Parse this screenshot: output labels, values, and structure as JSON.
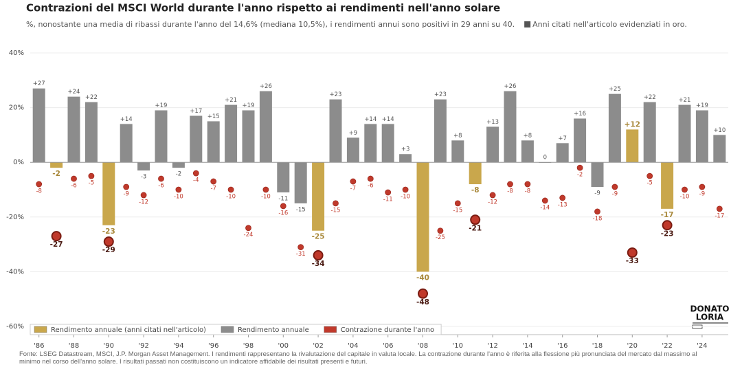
{
  "chart_data": {
    "type": "bar",
    "title": "Contrazioni del MSCI World durante l'anno rispetto ai rendimenti nell'anno solare",
    "subtitle": "%, nonostante una media di ribassi durante l'anno del 14,6% (mediana 10,5%), i rendimenti annui sono positivi in 29 anni su 40.",
    "highlight_note": "Anni citati nell'articolo evidenziati in oro.",
    "source": "Fonte: LSEG Datastream, MSCI, J.P. Morgan Asset Management. I rendimenti rappresentano la rivalutazione del capitale in valuta locale. La contrazione durante l'anno è riferita alla flessione più pronunciata del mercato dal massimo al minimo nel corso dell'anno solare. I risultati passati non costituiscono un indicatore affidabile dei risultati presenti e futuri.",
    "categories": [
      "'86",
      null,
      "'88",
      null,
      "'90",
      null,
      "'92",
      null,
      "'94",
      null,
      "'96",
      null,
      "'98",
      null,
      "'00",
      null,
      "'02",
      null,
      "'04",
      null,
      "'06",
      null,
      "'08",
      null,
      "'10",
      null,
      "'12",
      null,
      "'14",
      null,
      "'16",
      null,
      "'18",
      null,
      "'20",
      null,
      "'22",
      null,
      "'24",
      null
    ],
    "ylim": [
      -63,
      43
    ],
    "yticks": [
      {
        "value": -60,
        "label": "-60%"
      },
      {
        "value": -40,
        "label": "-40%"
      },
      {
        "value": -20,
        "label": "-20%"
      },
      {
        "value": 0,
        "label": "0%"
      },
      {
        "value": 20,
        "label": "20%"
      },
      {
        "value": 40,
        "label": "40%"
      }
    ],
    "grid": true,
    "legend": "bottom-left",
    "series": [
      {
        "name": "Rendimento annuale (anni citati nell'articolo)",
        "color": "#c9a74c",
        "highlight": true,
        "values": [
          null,
          -2,
          null,
          null,
          -23,
          null,
          null,
          null,
          null,
          null,
          null,
          null,
          null,
          null,
          null,
          null,
          -25,
          null,
          null,
          null,
          null,
          null,
          -40,
          null,
          null,
          -8,
          null,
          null,
          null,
          null,
          null,
          null,
          null,
          null,
          12,
          null,
          -17,
          null,
          null,
          null
        ],
        "value_labels": [
          null,
          "-2",
          null,
          null,
          "-23",
          null,
          null,
          null,
          null,
          null,
          null,
          null,
          null,
          null,
          null,
          null,
          "-25",
          null,
          null,
          null,
          null,
          null,
          "-40",
          null,
          null,
          "-8",
          null,
          null,
          null,
          null,
          null,
          null,
          null,
          null,
          "+12",
          null,
          "-17",
          null,
          null,
          null
        ]
      },
      {
        "name": "Rendimento annuale",
        "color": "#8c8c8c",
        "values": [
          27,
          null,
          24,
          22,
          null,
          14,
          -3,
          19,
          -2,
          17,
          15,
          21,
          19,
          26,
          -11,
          -15,
          null,
          23,
          9,
          14,
          14,
          3,
          null,
          23,
          8,
          null,
          13,
          26,
          8,
          0,
          7,
          16,
          -9,
          25,
          null,
          22,
          null,
          21,
          19,
          10
        ],
        "value_labels": [
          "+27",
          null,
          "+24",
          "+22",
          null,
          "+14",
          "-3",
          "+19",
          "-2",
          "+17",
          "+15",
          "+21",
          "+19",
          "+26",
          "-11",
          "-15",
          null,
          "+23",
          "+9",
          "+14",
          "+14",
          "+3",
          null,
          "+23",
          "+8",
          null,
          "+13",
          "+26",
          "+8",
          "0",
          "+7",
          "+16",
          "-9",
          "+25",
          null,
          "+22",
          null,
          "+21",
          "+19",
          "+10"
        ]
      },
      {
        "name": "Contrazione durante l'anno",
        "color": "#c0392b",
        "type": "scatter",
        "values": [
          -8,
          -27,
          -6,
          -5,
          -29,
          -9,
          -12,
          -6,
          -10,
          -4,
          -7,
          -10,
          -24,
          -10,
          -16,
          -31,
          -34,
          -15,
          -7,
          -6,
          -11,
          -10,
          -48,
          -25,
          -15,
          -21,
          -12,
          -8,
          -8,
          -14,
          -13,
          -2,
          -18,
          -9,
          -33,
          -5,
          -23,
          -10,
          -9,
          -17
        ]
      }
    ]
  },
  "brand": {
    "line1": "DONATO",
    "line2": "LORIA"
  }
}
